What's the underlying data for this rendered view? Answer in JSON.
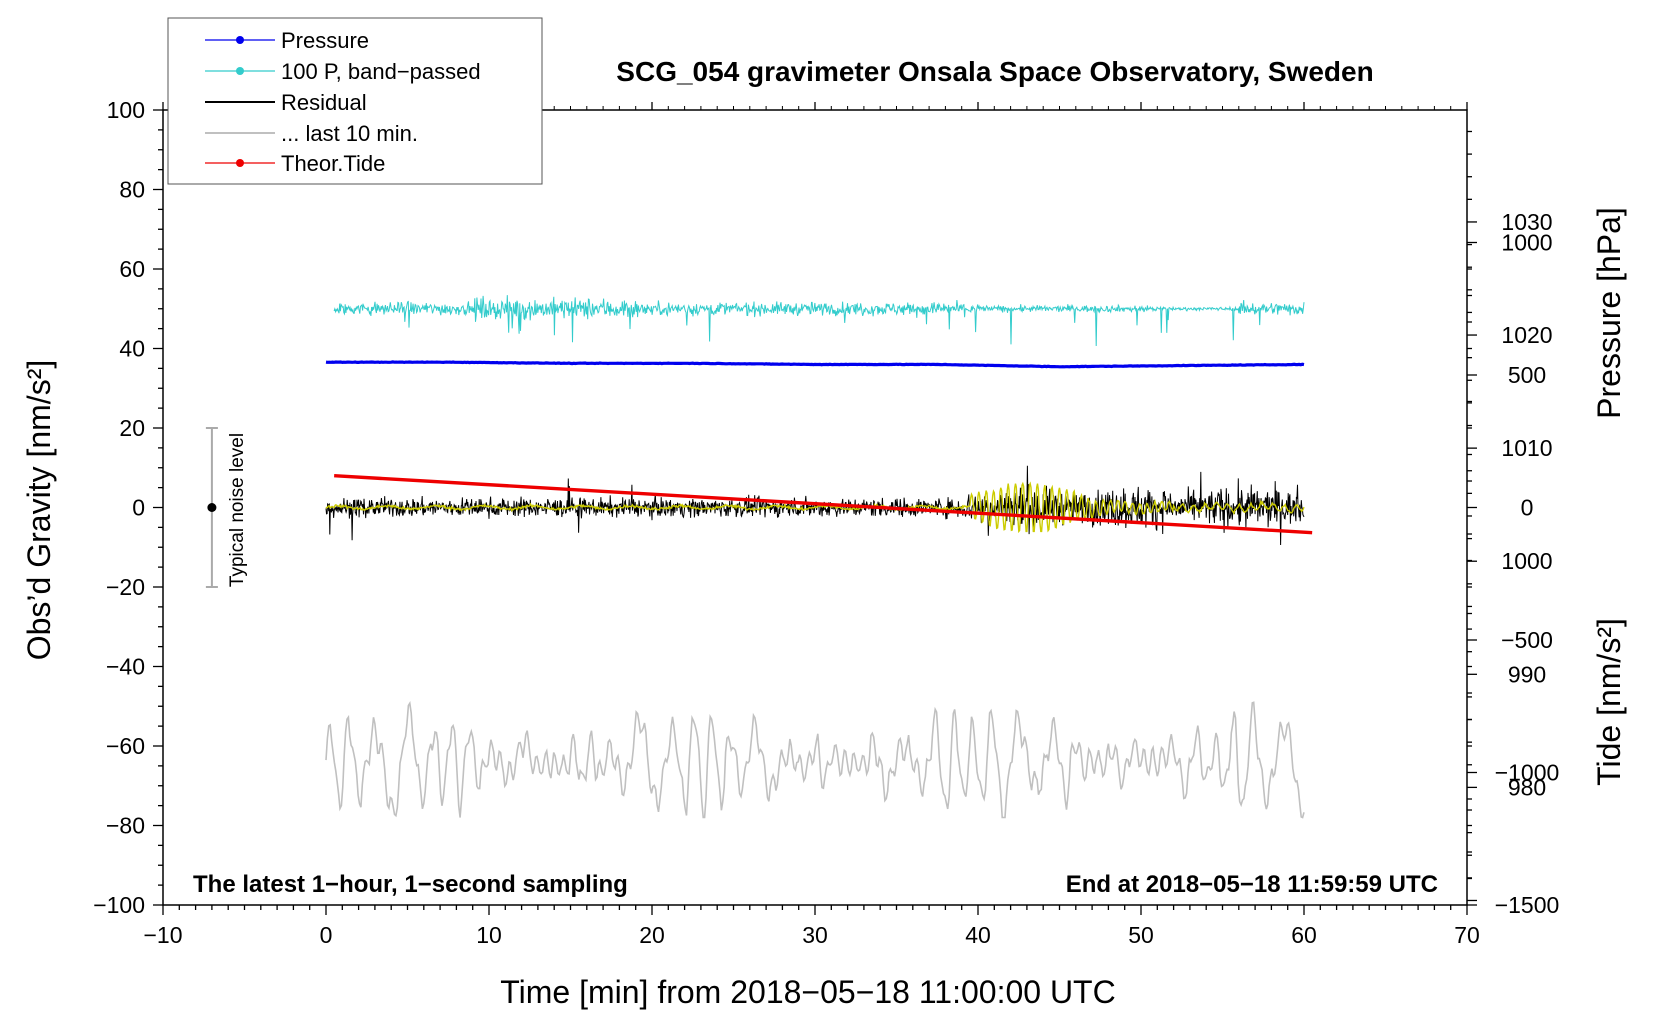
{
  "chart_data": {
    "type": "line",
    "title": "SCG_054 gravimeter Onsala Space Observatory, Sweden",
    "xlabel": "Time [min] from 2018−05−18 11:00:00 UTC",
    "ylabel_left": "Obs’d Gravity [nm/s²]",
    "ylabel_right_top": "Pressure [hPa]",
    "ylabel_right_bottom": "Tide [nm/s²]",
    "xlim": [
      -10,
      70
    ],
    "ylim_left": [
      -100,
      100
    ],
    "ylim_pressure": [
      969.6,
      1039.9
    ],
    "ylim_tide": [
      -1500,
      1500
    ],
    "x_ticks": [
      {
        "value": -10,
        "label": "−10"
      },
      {
        "value": 0,
        "label": "0"
      },
      {
        "value": 10,
        "label": "10"
      },
      {
        "value": 20,
        "label": "20"
      },
      {
        "value": 30,
        "label": "30"
      },
      {
        "value": 40,
        "label": "40"
      },
      {
        "value": 50,
        "label": "50"
      },
      {
        "value": 60,
        "label": "60"
      },
      {
        "value": 70,
        "label": "70"
      }
    ],
    "y_ticks_left": [
      {
        "value": 100,
        "label": "100"
      },
      {
        "value": 80,
        "label": "80"
      },
      {
        "value": 60,
        "label": "60"
      },
      {
        "value": 40,
        "label": "40"
      },
      {
        "value": 20,
        "label": "20"
      },
      {
        "value": 0,
        "label": "0"
      },
      {
        "value": -20,
        "label": "−20"
      },
      {
        "value": -40,
        "label": "−40"
      },
      {
        "value": -60,
        "label": "−60"
      },
      {
        "value": -80,
        "label": "−80"
      },
      {
        "value": -100,
        "label": "−100"
      }
    ],
    "y_ticks_pressure": [
      {
        "value": 1030,
        "label": "1030"
      },
      {
        "value": 1020,
        "label": "1020"
      },
      {
        "value": 1010,
        "label": "1010"
      },
      {
        "value": 1000,
        "label": "1000"
      },
      {
        "value": 990,
        "label": "990"
      },
      {
        "value": 980,
        "label": "980"
      }
    ],
    "y_ticks_tide": [
      {
        "value": 1000,
        "label": "1000"
      },
      {
        "value": 500,
        "label": "500"
      },
      {
        "value": 0,
        "label": "0"
      },
      {
        "value": -500,
        "label": "−500"
      },
      {
        "value": -1000,
        "label": "−1000"
      },
      {
        "value": -1500,
        "label": "−1500"
      }
    ],
    "series": [
      {
        "name": "Pressure",
        "color": "#0000ee",
        "axis": "pressure",
        "x_range": [
          0,
          60
        ],
        "values": [
          1017.6,
          1017.6,
          1017.5,
          1017.5,
          1017.4,
          1017.4,
          1017.2,
          1017.3,
          1017.4
        ]
      },
      {
        "name": "100 P, band−passed",
        "color": "#33cccc",
        "axis": "left",
        "x_range": [
          0.5,
          60
        ],
        "approx_level": 50,
        "amplitude": [
          -12,
          7
        ]
      },
      {
        "name": "Residual",
        "color": "#000000",
        "axis": "left",
        "x_range": [
          0,
          60
        ],
        "approx_level": 0,
        "amplitude": [
          -16,
          17
        ]
      },
      {
        "name": "Residual smoothed",
        "color": "#cccc00",
        "axis": "left",
        "x_range": [
          0,
          60
        ],
        "approx_level": 0,
        "amplitude": [
          -6,
          6
        ]
      },
      {
        "name": "... last 10 min.",
        "color": "#c0c0c0",
        "axis": "left",
        "x_range": [
          0,
          60
        ],
        "approx_level": -64,
        "amplitude": [
          -78,
          -48
        ]
      },
      {
        "name": "Theor.Tide",
        "color": "#ee0000",
        "axis": "tide",
        "x": [
          0.5,
          60.5
        ],
        "values": [
          120,
          -95
        ]
      }
    ],
    "legend": {
      "position": "top-left",
      "entries": [
        {
          "label": "Pressure",
          "color": "#0000ee",
          "marker": "dot"
        },
        {
          "label": "100 P, band−passed",
          "color": "#33cccc",
          "marker": "dot"
        },
        {
          "label": "Residual",
          "color": "#000000",
          "marker": "none"
        },
        {
          "label": "... last 10 min.",
          "color": "#c0c0c0",
          "marker": "none"
        },
        {
          "label": "Theor.Tide",
          "color": "#ee0000",
          "marker": "dot"
        }
      ]
    },
    "annotations": {
      "bottom_left": "The latest 1−hour, 1−second sampling",
      "bottom_right": "End at 2018−05−18 11:59:59 UTC",
      "noise_label": "Typical noise level",
      "noise_bar": {
        "x": -7,
        "center": 0,
        "half_range": 20
      }
    }
  }
}
